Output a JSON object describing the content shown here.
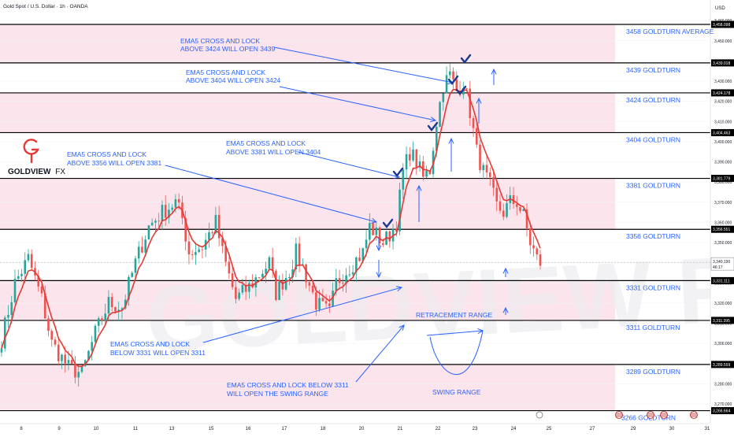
{
  "header": {
    "title": "Gold Spot / U.S. Dollar · 1h · OANDA",
    "currency": "USD"
  },
  "logo": {
    "brand": "GOLDVIEW",
    "brand_suffix": "FX",
    "watermark": "GOLDVIEW FX"
  },
  "colors": {
    "zone_fill": "#fce4ec",
    "candle_up": "#26a69a",
    "candle_down": "#ef5350",
    "ema": "#e53935",
    "annotation": "#2962ff",
    "level_line": "#000000",
    "logo_red": "#e53935",
    "checkmark": "#1a3a8f"
  },
  "chart_data": {
    "type": "candlestick",
    "symbol": "Gold Spot / U.S. Dollar",
    "timeframe": "1h",
    "source": "OANDA",
    "ylim": [
      3262,
      3465
    ],
    "x_ticks": [
      "8",
      "9",
      "10",
      "11",
      "13",
      "15",
      "16",
      "17",
      "18",
      "20",
      "21",
      "22",
      "23",
      "24",
      "25",
      "27",
      "29",
      "30",
      "31"
    ],
    "y_ticks": [
      "3,460.000",
      "3,450.000",
      "3,440.000",
      "3,430.000",
      "3,420.000",
      "3,410.000",
      "3,400.000",
      "3,390.000",
      "3,380.000",
      "3,370.000",
      "3,360.000",
      "3,350.000",
      "3,340.000",
      "3,330.000",
      "3,320.000",
      "3,310.000",
      "3,300.000",
      "3,290.000",
      "3,280.000",
      "3,270.000"
    ],
    "levels": [
      {
        "value": 3458.098,
        "label": "3458 GOLDTURN AVERAGE",
        "price_tag": "3,458.098"
      },
      {
        "value": 3439.018,
        "label": "3439 GOLDTURN",
        "price_tag": "3,439.018"
      },
      {
        "value": 3424.178,
        "label": "3424 GOLDTURN",
        "price_tag": "3,424.178"
      },
      {
        "value": 3404.463,
        "label": "3404 GOLDTURN",
        "price_tag": "3,404.463"
      },
      {
        "value": 3381.779,
        "label": "3381 GOLDTURN",
        "price_tag": "3,381.779"
      },
      {
        "value": 3356.551,
        "label": "3356 GOLDTURN",
        "price_tag": "3,356.551"
      },
      {
        "value": 3331.111,
        "label": "3331 GOLDTURN",
        "price_tag": "3,331.111"
      },
      {
        "value": 3311.395,
        "label": "3311 GOLDTURN",
        "price_tag": "3,311.395"
      },
      {
        "value": 3289.559,
        "label": "3289 GOLDTURN",
        "price_tag": "3,289.559"
      },
      {
        "value": 3266.664,
        "label": "3266 GOLDTURN",
        "price_tag": "3,266.664"
      }
    ],
    "zones": [
      [
        3439.018,
        3458.098
      ],
      [
        3404.463,
        3424.178
      ],
      [
        3356.551,
        3381.779
      ],
      [
        3311.395,
        3331.111
      ],
      [
        3266.664,
        3289.559
      ]
    ],
    "current_price": {
      "value": 3340.19,
      "label": "3,340.190",
      "countdown": "46:17"
    },
    "anchors": [
      [
        0,
        3302
      ],
      [
        4,
        3330
      ],
      [
        8,
        3342
      ],
      [
        12,
        3322
      ],
      [
        15,
        3300
      ],
      [
        20,
        3288
      ],
      [
        24,
        3285
      ],
      [
        28,
        3305
      ],
      [
        32,
        3320
      ],
      [
        36,
        3318
      ],
      [
        40,
        3340
      ],
      [
        44,
        3358
      ],
      [
        48,
        3365
      ],
      [
        52,
        3370
      ],
      [
        54,
        3362
      ],
      [
        56,
        3345
      ],
      [
        60,
        3348
      ],
      [
        64,
        3360
      ],
      [
        66,
        3345
      ],
      [
        70,
        3322
      ],
      [
        74,
        3328
      ],
      [
        76,
        3332
      ],
      [
        80,
        3340
      ],
      [
        82,
        3325
      ],
      [
        86,
        3336
      ],
      [
        88,
        3345
      ],
      [
        90,
        3338
      ],
      [
        94,
        3320
      ],
      [
        98,
        3315
      ],
      [
        100,
        3330
      ],
      [
        104,
        3338
      ],
      [
        108,
        3345
      ],
      [
        110,
        3358
      ],
      [
        114,
        3350
      ],
      [
        116,
        3354
      ],
      [
        118,
        3360
      ],
      [
        120,
        3385
      ],
      [
        122,
        3395
      ],
      [
        124,
        3390
      ],
      [
        126,
        3382
      ],
      [
        128,
        3386
      ],
      [
        130,
        3410
      ],
      [
        132,
        3428
      ],
      [
        134,
        3433
      ],
      [
        136,
        3425
      ],
      [
        138,
        3430
      ],
      [
        140,
        3415
      ],
      [
        142,
        3395
      ],
      [
        144,
        3385
      ],
      [
        146,
        3378
      ],
      [
        148,
        3368
      ],
      [
        150,
        3365
      ],
      [
        152,
        3370
      ],
      [
        154,
        3370
      ],
      [
        156,
        3363
      ],
      [
        158,
        3350
      ],
      [
        160,
        3342
      ],
      [
        161,
        3340
      ]
    ],
    "xlabel": "",
    "ylabel": ""
  },
  "annotations": {
    "a1": {
      "line1": "EMA5 CROSS AND LOCK",
      "line2": "ABOVE 3424 WILL OPEN 3439"
    },
    "a2": {
      "line1": "EMA5 CROSS AND LOCK",
      "line2": "ABOVE 3404 WILL OPEN 3424"
    },
    "a3": {
      "line1": "EMA5 CROSS AND LOCK",
      "line2": "ABOVE 3381 WILL OPEN 3404"
    },
    "a4": {
      "line1": "EMA5 CROSS AND LOCK",
      "line2": "ABOVE 3356 WILL OPEN 3381"
    },
    "a5": {
      "line1": "EMA5 CROSS AND LOCK",
      "line2": "BELOW 3331 WILL OPEN 3311"
    },
    "a6": {
      "line1": "EMA5 CROSS AND LOCK BELOW 3311",
      "line2": "WILL OPEN THE SWING RANGE"
    },
    "retracement": "RETRACEMENT RANGE",
    "swing": "SWING RANGE"
  }
}
